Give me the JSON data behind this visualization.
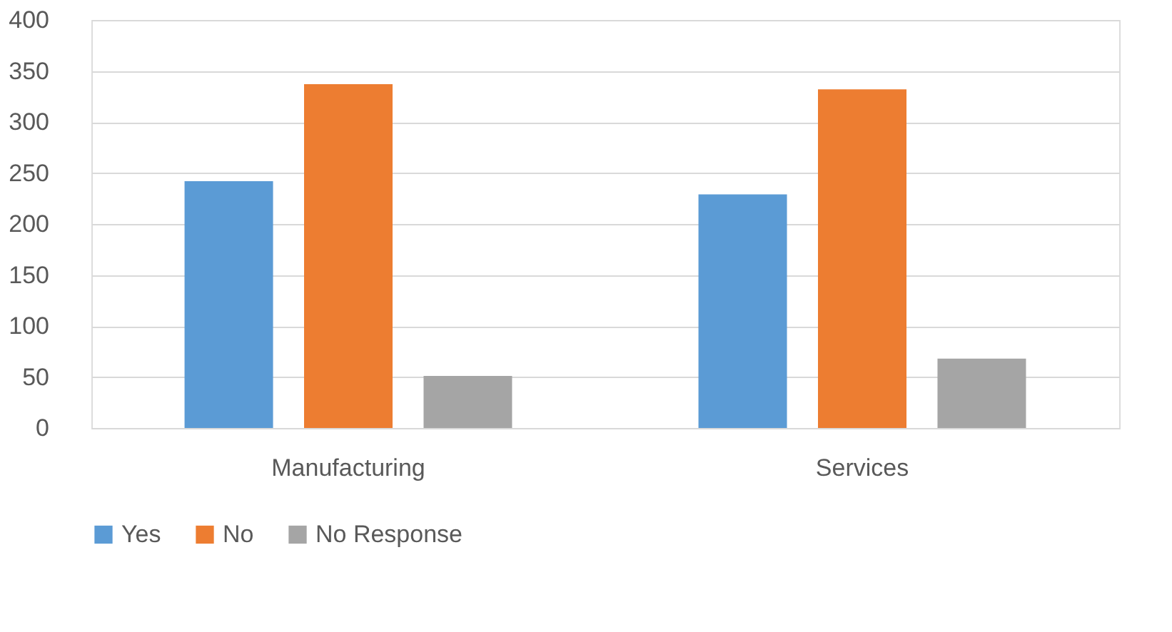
{
  "chart_data": {
    "type": "bar",
    "categories": [
      "Manufacturing",
      "Services"
    ],
    "series": [
      {
        "name": "Yes",
        "color": "#5b9bd5",
        "values": [
          242,
          229
        ]
      },
      {
        "name": "No",
        "color": "#ed7d31",
        "values": [
          337,
          332
        ]
      },
      {
        "name": "No Response",
        "color": "#a5a5a5",
        "values": [
          51,
          68
        ]
      }
    ],
    "ylim": [
      0,
      400
    ],
    "yticks": [
      0,
      50,
      100,
      150,
      200,
      250,
      300,
      350,
      400
    ],
    "grid": "y",
    "legend": "bottom"
  }
}
